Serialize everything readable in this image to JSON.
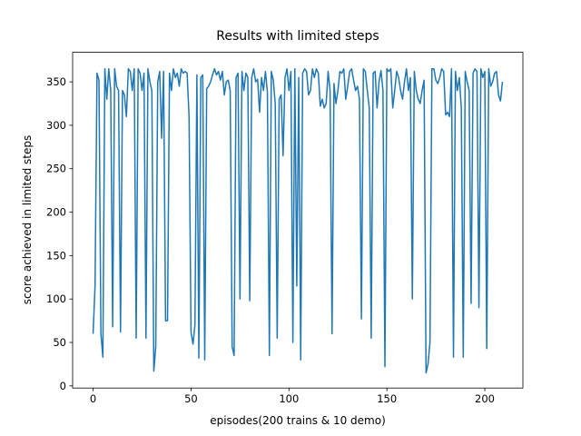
{
  "chart_data": {
    "type": "line",
    "title": "Results with limited steps",
    "x_label": "episodes(200 trains & 10 demo)",
    "y_label": "score achieved in limited steps",
    "x": [
      0,
      1,
      2,
      3,
      4,
      5,
      6,
      7,
      8,
      9,
      10,
      11,
      12,
      13,
      14,
      15,
      16,
      17,
      18,
      19,
      20,
      21,
      22,
      23,
      24,
      25,
      26,
      27,
      28,
      29,
      30,
      31,
      32,
      33,
      34,
      35,
      36,
      37,
      38,
      39,
      40,
      41,
      42,
      43,
      44,
      45,
      46,
      47,
      48,
      49,
      50,
      51,
      52,
      53,
      54,
      55,
      56,
      57,
      58,
      59,
      60,
      61,
      62,
      63,
      64,
      65,
      66,
      67,
      68,
      69,
      70,
      71,
      72,
      73,
      74,
      75,
      76,
      77,
      78,
      79,
      80,
      81,
      82,
      83,
      84,
      85,
      86,
      87,
      88,
      89,
      90,
      91,
      92,
      93,
      94,
      95,
      96,
      97,
      98,
      99,
      100,
      101,
      102,
      103,
      104,
      105,
      106,
      107,
      108,
      109,
      110,
      111,
      112,
      113,
      114,
      115,
      116,
      117,
      118,
      119,
      120,
      121,
      122,
      123,
      124,
      125,
      126,
      127,
      128,
      129,
      130,
      131,
      132,
      133,
      134,
      135,
      136,
      137,
      138,
      139,
      140,
      141,
      142,
      143,
      144,
      145,
      146,
      147,
      148,
      149,
      150,
      151,
      152,
      153,
      154,
      155,
      156,
      157,
      158,
      159,
      160,
      161,
      162,
      163,
      164,
      165,
      166,
      167,
      168,
      169,
      170,
      171,
      172,
      173,
      174,
      175,
      176,
      177,
      178,
      179,
      180,
      181,
      182,
      183,
      184,
      185,
      186,
      187,
      188,
      189,
      190,
      191,
      192,
      193,
      194,
      195,
      196,
      197,
      198,
      199,
      200,
      201,
      202,
      203,
      204,
      205,
      206,
      207,
      208,
      209
    ],
    "series": [
      {
        "color": "#1f77b4",
        "values": [
          60,
          115,
          360,
          352,
          60,
          33,
          365,
          330,
          365,
          340,
          68,
          365,
          345,
          340,
          62,
          340,
          335,
          310,
          365,
          362,
          340,
          365,
          55,
          365,
          360,
          340,
          360,
          55,
          365,
          350,
          340,
          17,
          45,
          350,
          362,
          285,
          362,
          75,
          75,
          360,
          340,
          365,
          355,
          360,
          345,
          365,
          360,
          362,
          360,
          310,
          62,
          48,
          70,
          358,
          32,
          355,
          358,
          30,
          342,
          345,
          350,
          358,
          365,
          358,
          362,
          352,
          362,
          335,
          350,
          352,
          340,
          45,
          35,
          355,
          360,
          100,
          362,
          340,
          360,
          355,
          98,
          355,
          365,
          350,
          353,
          315,
          355,
          340,
          362,
          338,
          35,
          362,
          352,
          325,
          55,
          330,
          335,
          265,
          355,
          365,
          340,
          362,
          50,
          365,
          115,
          355,
          30,
          360,
          365,
          362,
          335,
          340,
          365,
          355,
          365,
          360,
          322,
          330,
          320,
          325,
          362,
          340,
          60,
          348,
          325,
          340,
          362,
          360,
          365,
          330,
          345,
          362,
          365,
          352,
          340,
          345,
          330,
          77,
          365,
          362,
          340,
          320,
          55,
          360,
          362,
          320,
          350,
          363,
          340,
          22,
          365,
          362,
          365,
          320,
          340,
          362,
          355,
          340,
          330,
          350,
          365,
          340,
          355,
          100,
          362,
          340,
          330,
          325,
          340,
          352,
          15,
          25,
          50,
          365,
          365,
          352,
          348,
          355,
          365,
          362,
          312,
          315,
          310,
          365,
          33,
          362,
          340,
          355,
          320,
          33,
          362,
          350,
          340,
          95,
          360,
          365,
          362,
          90,
          365,
          355,
          362,
          43,
          365,
          345,
          350,
          360,
          362,
          335,
          328,
          350
        ]
      }
    ],
    "xlim": [
      -10.45,
      219.45
    ],
    "ylim": [
      -2.5,
      384
    ],
    "xticks": [
      0,
      50,
      100,
      150,
      200
    ],
    "yticks": [
      0,
      50,
      100,
      150,
      200,
      250,
      300,
      350
    ]
  }
}
